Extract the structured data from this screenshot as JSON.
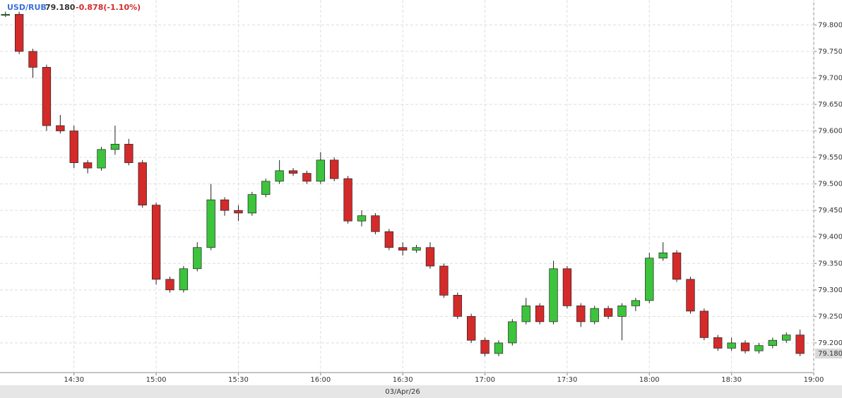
{
  "header": {
    "symbol": "USD/RUB",
    "price": "79.180",
    "change": "-0.878(-1.10%)"
  },
  "chart_data": {
    "type": "candlestick",
    "last_label": "79.180",
    "date_label": "03/Apr/26",
    "up_color": "#3cc43c",
    "down_color": "#d42a2a",
    "grid": true,
    "x": [
      "14:05",
      "14:10",
      "14:15",
      "14:20",
      "14:25",
      "14:30",
      "14:35",
      "14:40",
      "14:45",
      "14:50",
      "14:55",
      "15:00",
      "15:05",
      "15:10",
      "15:15",
      "15:20",
      "15:25",
      "15:30",
      "15:35",
      "15:40",
      "15:45",
      "15:50",
      "15:55",
      "16:00",
      "16:05",
      "16:10",
      "16:15",
      "16:20",
      "16:25",
      "16:30",
      "16:35",
      "16:40",
      "16:45",
      "16:50",
      "16:55",
      "17:00",
      "17:05",
      "17:10",
      "17:15",
      "17:20",
      "17:25",
      "17:30",
      "17:35",
      "17:40",
      "17:45",
      "17:50",
      "17:55",
      "18:00",
      "18:05",
      "18:10",
      "18:15",
      "18:20",
      "18:25",
      "18:30",
      "18:35",
      "18:40",
      "18:45",
      "18:50",
      "18:55"
    ],
    "open": [
      79.818,
      79.82,
      79.75,
      79.72,
      79.61,
      79.6,
      79.54,
      79.53,
      79.565,
      79.575,
      79.54,
      79.46,
      79.32,
      79.3,
      79.34,
      79.38,
      79.47,
      79.45,
      79.445,
      79.48,
      79.505,
      79.525,
      79.52,
      79.505,
      79.545,
      79.51,
      79.43,
      79.44,
      79.41,
      79.38,
      79.375,
      79.38,
      79.345,
      79.29,
      79.25,
      79.205,
      79.18,
      79.2,
      79.24,
      79.27,
      79.24,
      79.34,
      79.27,
      79.24,
      79.265,
      79.25,
      79.27,
      79.28,
      79.36,
      79.37,
      79.32,
      79.26,
      79.21,
      79.19,
      79.2,
      79.185,
      79.195,
      79.205,
      79.215
    ],
    "high": [
      79.825,
      79.825,
      79.755,
      79.725,
      79.63,
      79.61,
      79.545,
      79.57,
      79.61,
      79.585,
      79.545,
      79.465,
      79.325,
      79.345,
      79.39,
      79.5,
      79.475,
      79.46,
      79.485,
      79.51,
      79.545,
      79.53,
      79.525,
      79.56,
      79.55,
      79.515,
      79.45,
      79.445,
      79.415,
      79.39,
      79.385,
      79.39,
      79.35,
      79.295,
      79.255,
      79.21,
      79.205,
      79.245,
      79.285,
      79.275,
      79.355,
      79.345,
      79.275,
      79.27,
      79.27,
      79.275,
      79.285,
      79.37,
      79.39,
      79.375,
      79.325,
      79.265,
      79.215,
      79.21,
      79.205,
      79.2,
      79.21,
      79.22,
      79.225
    ],
    "low": [
      79.815,
      79.745,
      79.7,
      79.6,
      79.595,
      79.53,
      79.52,
      79.525,
      79.555,
      79.535,
      79.455,
      79.31,
      79.295,
      79.295,
      79.335,
      79.375,
      79.44,
      79.43,
      79.44,
      79.475,
      79.5,
      79.515,
      79.5,
      79.5,
      79.505,
      79.425,
      79.42,
      79.405,
      79.375,
      79.365,
      79.37,
      79.34,
      79.285,
      79.245,
      79.2,
      79.175,
      79.175,
      79.195,
      79.235,
      79.235,
      79.235,
      79.265,
      79.23,
      79.235,
      79.245,
      79.205,
      79.26,
      79.275,
      79.355,
      79.315,
      79.255,
      79.205,
      79.185,
      79.185,
      79.18,
      79.18,
      79.19,
      79.2,
      79.175
    ],
    "close": [
      79.82,
      79.75,
      79.72,
      79.61,
      79.6,
      79.54,
      79.53,
      79.565,
      79.575,
      79.54,
      79.46,
      79.32,
      79.3,
      79.34,
      79.38,
      79.47,
      79.45,
      79.445,
      79.48,
      79.505,
      79.525,
      79.52,
      79.505,
      79.545,
      79.51,
      79.43,
      79.44,
      79.41,
      79.38,
      79.375,
      79.38,
      79.345,
      79.29,
      79.25,
      79.205,
      79.18,
      79.2,
      79.24,
      79.27,
      79.24,
      79.34,
      79.27,
      79.24,
      79.265,
      79.25,
      79.27,
      79.28,
      79.36,
      79.37,
      79.32,
      79.26,
      79.21,
      79.19,
      79.2,
      79.185,
      79.195,
      79.205,
      79.215,
      79.18
    ],
    "xlim": [
      "14:03",
      "19:00"
    ],
    "xticks": [
      "14:30",
      "15:00",
      "15:30",
      "16:00",
      "16:30",
      "17:00",
      "17:30",
      "18:00",
      "18:30",
      "19:00"
    ],
    "ylim": [
      79.144,
      79.847
    ],
    "yticks": [
      {
        "value": 79.2,
        "label": "79.200"
      },
      {
        "value": 79.25,
        "label": "79.250"
      },
      {
        "value": 79.3,
        "label": "79.300"
      },
      {
        "value": 79.35,
        "label": "79.350"
      },
      {
        "value": 79.4,
        "label": "79.400"
      },
      {
        "value": 79.45,
        "label": "79.450"
      },
      {
        "value": 79.5,
        "label": "79.500"
      },
      {
        "value": 79.55,
        "label": "79.550"
      },
      {
        "value": 79.6,
        "label": "79.600"
      },
      {
        "value": 79.65,
        "label": "79.650"
      },
      {
        "value": 79.7,
        "label": "79.700"
      },
      {
        "value": 79.75,
        "label": "79.750"
      },
      {
        "value": 79.8,
        "label": "79.800"
      }
    ]
  }
}
